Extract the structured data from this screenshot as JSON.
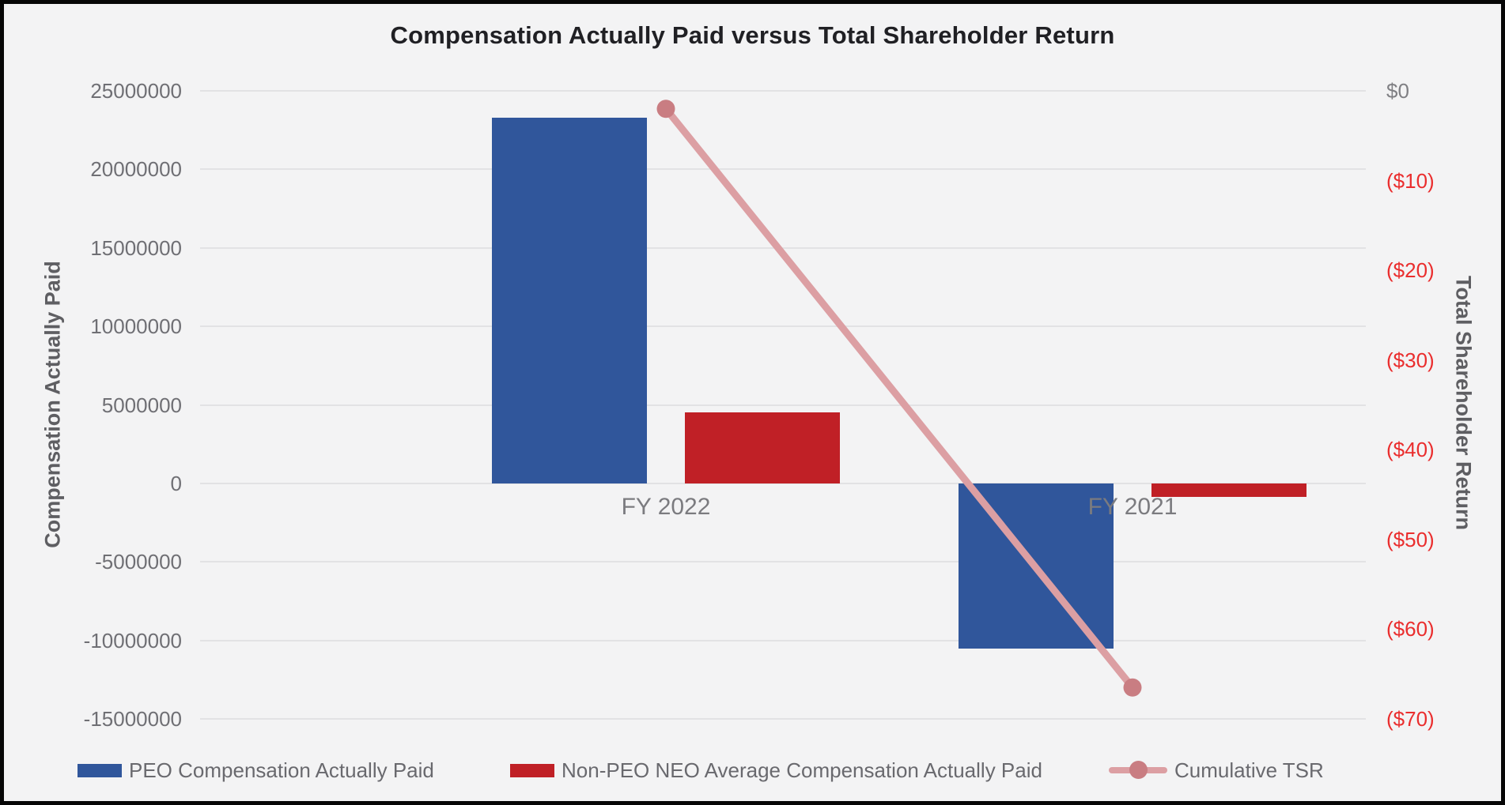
{
  "chart_data": {
    "type": "bar",
    "subtype": "combo-bar-line-dual-axis",
    "title": "Compensation Actually Paid versus Total Shareholder Return",
    "categories": [
      "FY 2022",
      "FY 2021"
    ],
    "series": [
      {
        "name": "PEO Compensation Actually Paid",
        "type": "bar",
        "axis": "left",
        "color": "#30569B",
        "values": [
          23300000,
          -10500000
        ]
      },
      {
        "name": "Non-PEO NEO Average Compensation Actually Paid",
        "type": "bar",
        "axis": "left",
        "color": "#C02026",
        "values": [
          4500000,
          -850000
        ]
      },
      {
        "name": "Cumulative TSR",
        "type": "line",
        "axis": "right",
        "color": "#DC9FA3",
        "marker_color": "#C97D82",
        "values": [
          -2,
          -66.5
        ]
      }
    ],
    "left_axis": {
      "title": "Compensation Actually Paid",
      "min": -15000000,
      "max": 25000000,
      "step": 5000000,
      "tick_labels": [
        "25000000",
        "20000000",
        "15000000",
        "10000000",
        "5000000",
        "0",
        "-5000000",
        "-10000000",
        "-15000000"
      ],
      "tick_color": "#6F6F74"
    },
    "right_axis": {
      "title": "Total Shareholder Return",
      "min": -70,
      "max": 0,
      "step": 10,
      "tick_labels": [
        "$0",
        "($10)",
        "($20)",
        "($30)",
        "($40)",
        "($50)",
        "($60)",
        "($70)"
      ],
      "zero_tick_color": "#7F7F83",
      "negative_tick_color": "#EA2E2E"
    },
    "grid": true,
    "legend_position": "bottom",
    "background_color": "#F3F3F4",
    "gridline_color": "#E2E2E4"
  }
}
